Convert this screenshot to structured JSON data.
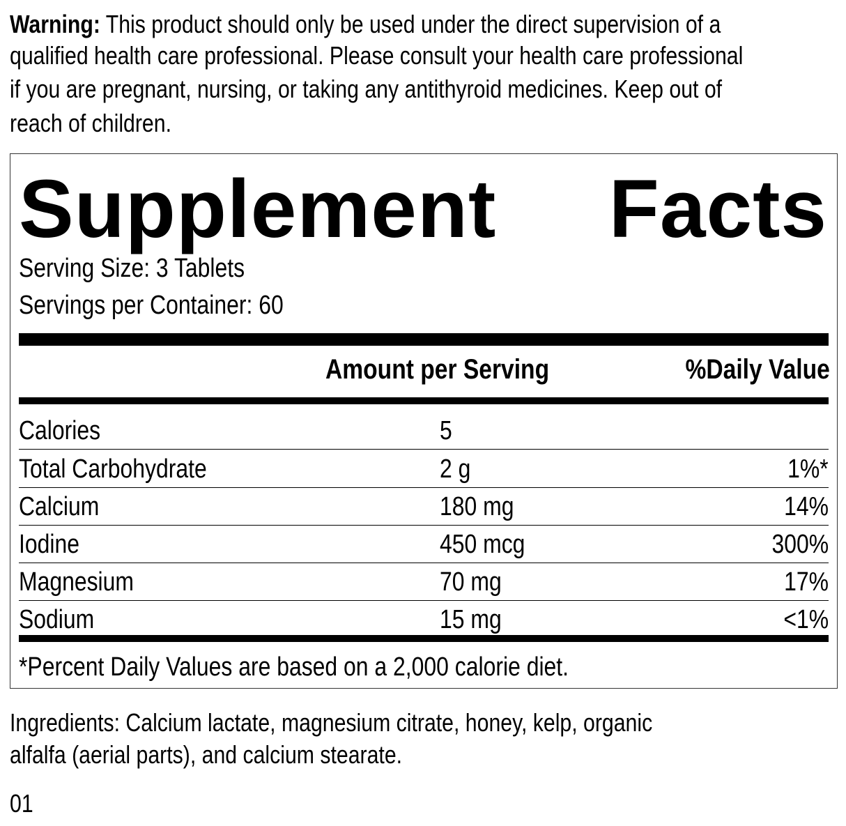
{
  "warning": {
    "label": "Warning:",
    "lines": [
      " This product should only be used under the direct supervision of a",
      "qualified health care professional. Please consult your health care professional",
      "if you are pregnant, nursing, or taking any antithyroid medicines. Keep out of",
      "reach of children."
    ]
  },
  "facts": {
    "title_word1": "Supplement",
    "title_word2": "Facts",
    "serving_size": "Serving Size: 3 Tablets",
    "servings_per_container": "Servings per Container: 60",
    "header_amount": "Amount per Serving",
    "header_dv": "%Daily Value",
    "rows": [
      {
        "name": "Calories",
        "amount": "5",
        "dv": ""
      },
      {
        "name": "Total Carbohydrate",
        "amount": "2 g",
        "dv": "1%*"
      },
      {
        "name": "Calcium",
        "amount": "180 mg",
        "dv": "14%"
      },
      {
        "name": "Iodine",
        "amount": "450 mcg",
        "dv": "300%"
      },
      {
        "name": "Magnesium",
        "amount": "70 mg",
        "dv": "17%"
      },
      {
        "name": "Sodium",
        "amount": "15 mg",
        "dv": "<1%"
      }
    ],
    "footnote": "*Percent Daily Values are based on a 2,000 calorie diet."
  },
  "ingredients": {
    "lines": [
      "Ingredients: Calcium lactate, magnesium citrate, honey, kelp, organic",
      "alfalfa (aerial parts), and calcium stearate."
    ]
  },
  "code": "01"
}
